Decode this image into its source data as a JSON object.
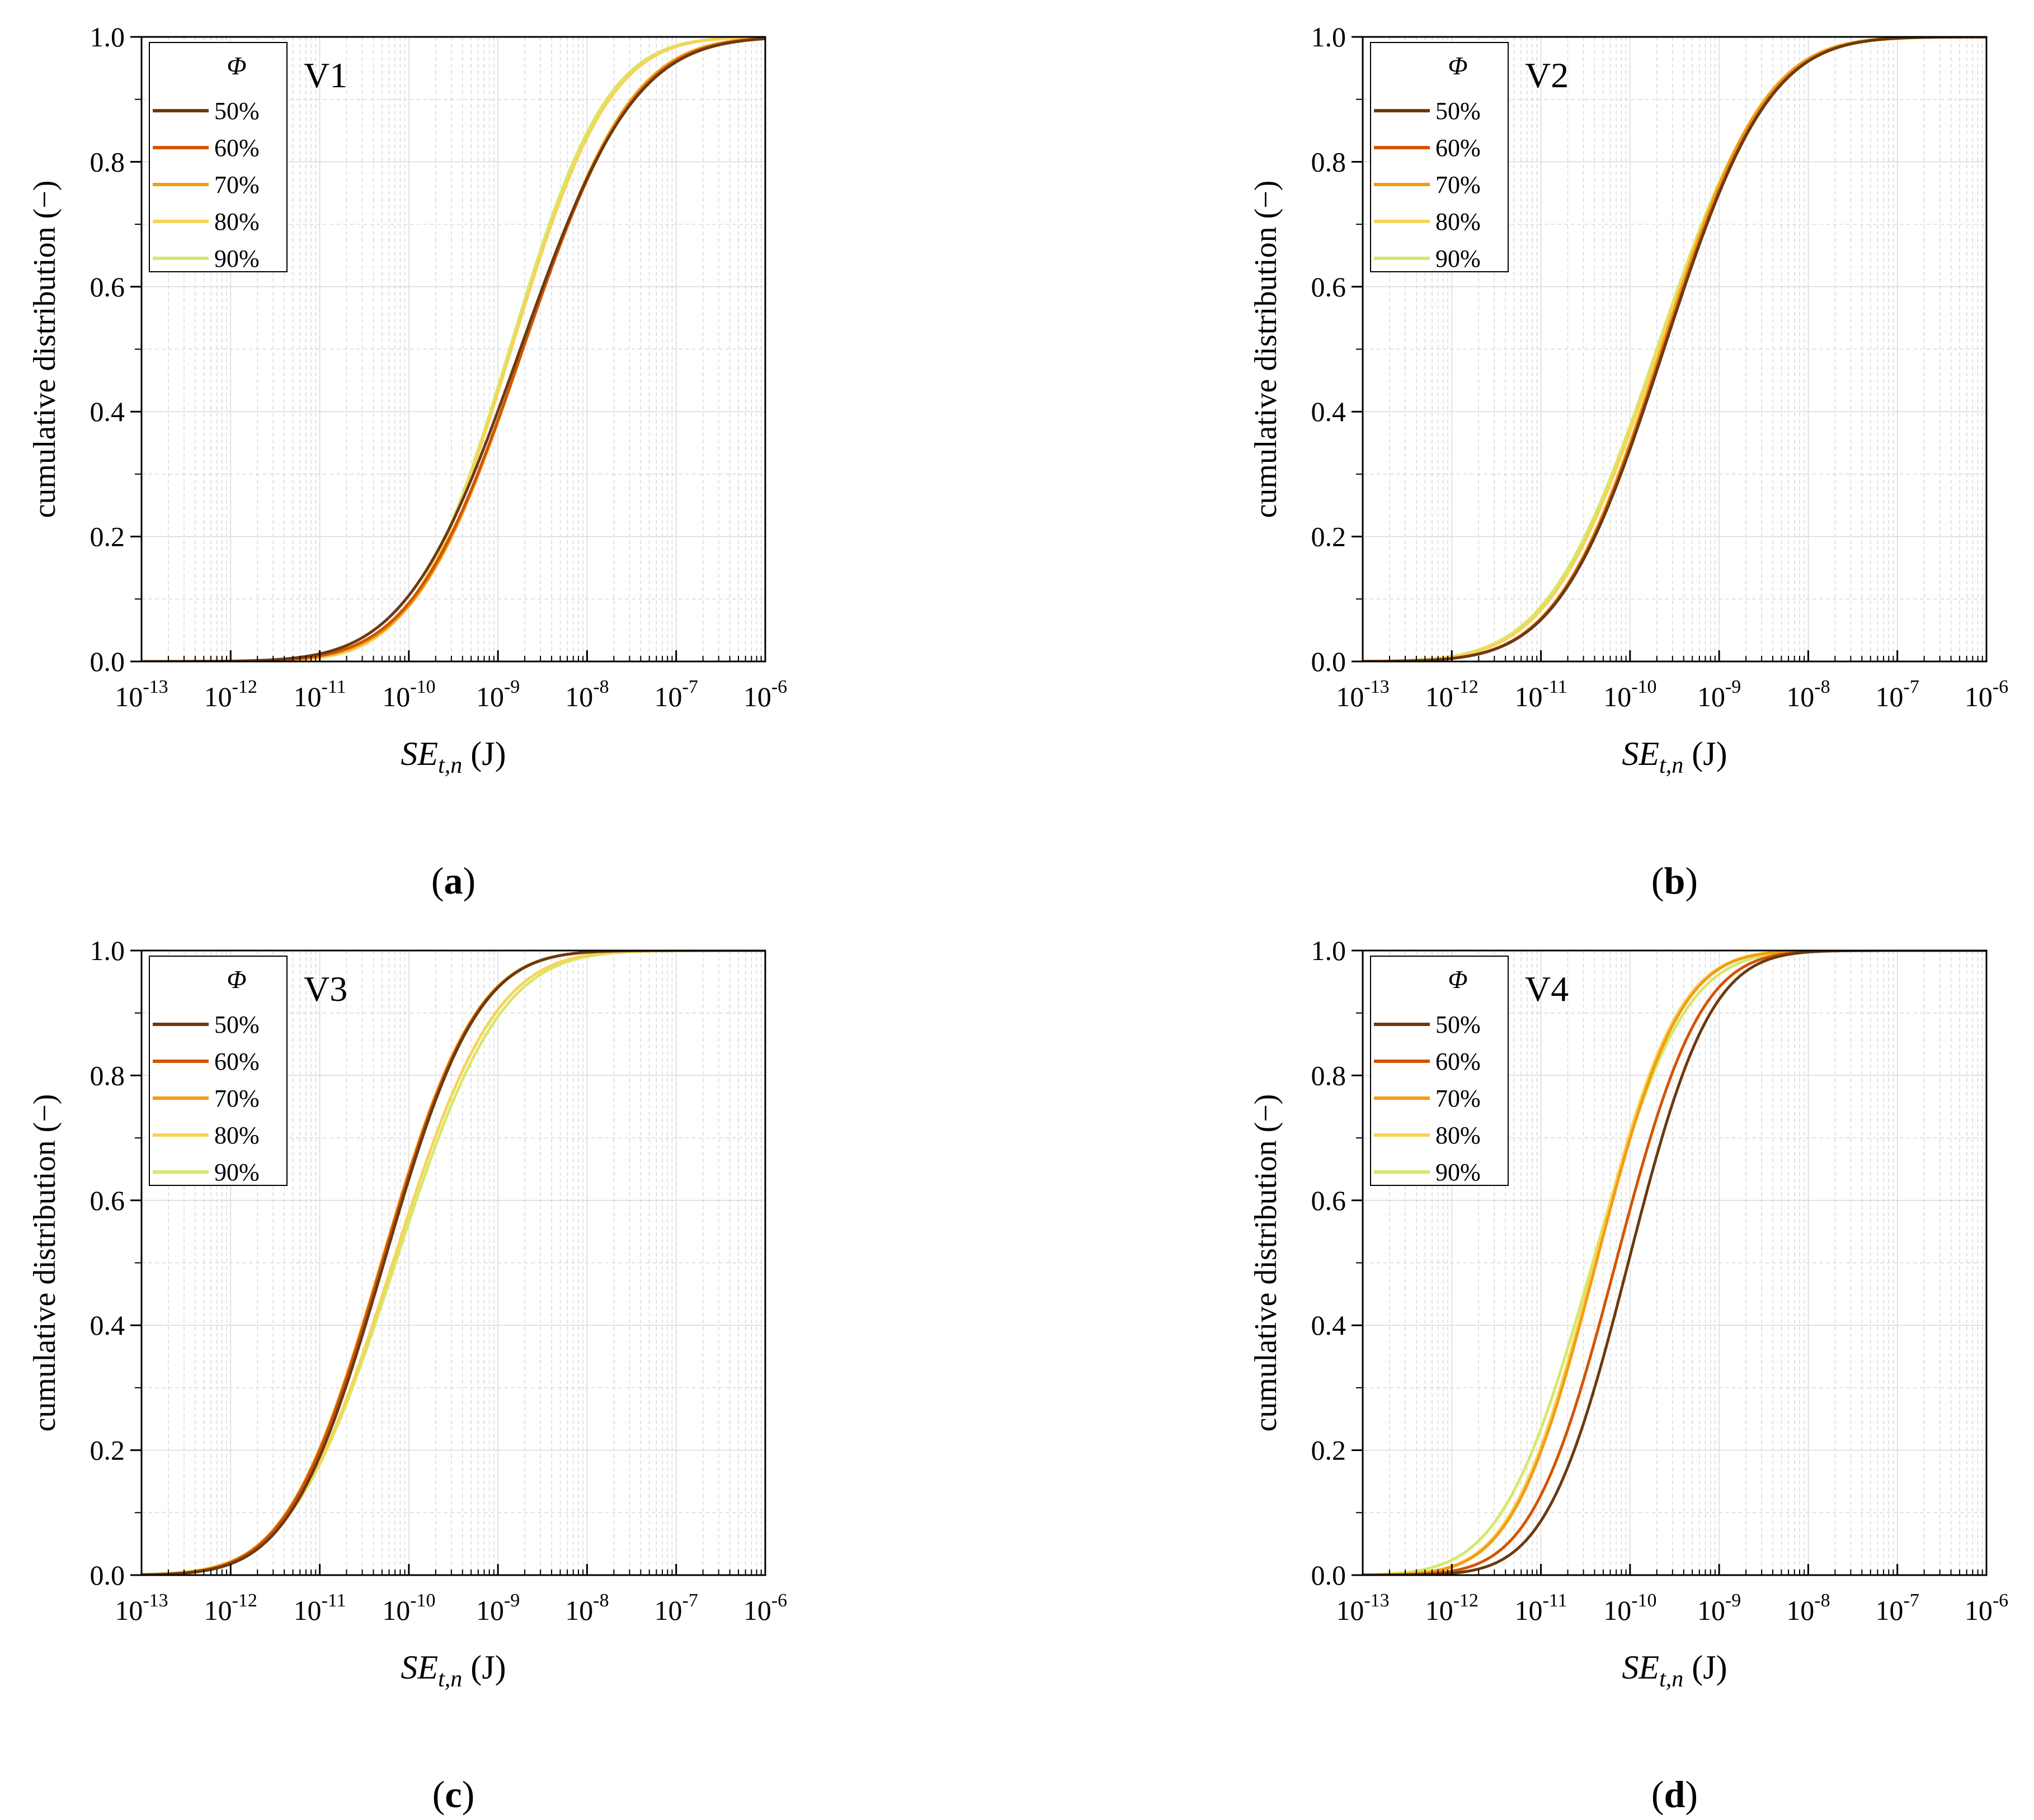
{
  "chart_data": [
    {
      "type": "line",
      "panel_label": "a",
      "panel_label_text": "(a)",
      "title": "V1",
      "xlabel_main": "SE",
      "xlabel_sub": "t,n",
      "xlabel_unit": " (J)",
      "ylabel": "cumulative distribution (−)",
      "xscale": "log",
      "xlim": [
        1e-13,
        1e-06
      ],
      "ylim": [
        0,
        1
      ],
      "xticks": [
        -13,
        -12,
        -11,
        -10,
        -9,
        -8,
        -7,
        -6
      ],
      "xtick_labels": [
        {
          "base": "10",
          "exp": "-13"
        },
        {
          "base": "10",
          "exp": "-12"
        },
        {
          "base": "10",
          "exp": "-11"
        },
        {
          "base": "10",
          "exp": "-10"
        },
        {
          "base": "10",
          "exp": "-9"
        },
        {
          "base": "10",
          "exp": "-8"
        },
        {
          "base": "10",
          "exp": "-7"
        },
        {
          "base": "10",
          "exp": "-6"
        }
      ],
      "yticks": [
        0,
        0.2,
        0.4,
        0.6,
        0.8,
        1.0
      ],
      "ytick_labels": [
        "0.0",
        "0.2",
        "0.4",
        "0.6",
        "0.8",
        "1.0"
      ],
      "grid": true,
      "legend_title": "Φ",
      "legend_position": "top-left",
      "series": [
        {
          "name": "50%",
          "color": "#6b3a10",
          "median_log10": -8.75,
          "sigma_log10": 1.0
        },
        {
          "name": "60%",
          "color": "#d35400",
          "median_log10": -8.72,
          "sigma_log10": 0.97
        },
        {
          "name": "70%",
          "color": "#f39c12",
          "median_log10": -8.72,
          "sigma_log10": 0.95
        },
        {
          "name": "80%",
          "color": "#f7d358",
          "median_log10": -8.85,
          "sigma_log10": 0.86
        },
        {
          "name": "90%",
          "color": "#d6e86a",
          "median_log10": -8.87,
          "sigma_log10": 0.85
        }
      ]
    },
    {
      "type": "line",
      "panel_label": "b",
      "panel_label_text": "(b)",
      "title": "V2",
      "xlabel_main": "SE",
      "xlabel_sub": "t,n",
      "xlabel_unit": " (J)",
      "ylabel": "cumulative distribution (−)",
      "xscale": "log",
      "xlim": [
        1e-13,
        1e-06
      ],
      "ylim": [
        0,
        1
      ],
      "xticks": [
        -13,
        -12,
        -11,
        -10,
        -9,
        -8,
        -7,
        -6
      ],
      "xtick_labels": [
        {
          "base": "10",
          "exp": "-13"
        },
        {
          "base": "10",
          "exp": "-12"
        },
        {
          "base": "10",
          "exp": "-11"
        },
        {
          "base": "10",
          "exp": "-10"
        },
        {
          "base": "10",
          "exp": "-9"
        },
        {
          "base": "10",
          "exp": "-8"
        },
        {
          "base": "10",
          "exp": "-7"
        },
        {
          "base": "10",
          "exp": "-6"
        }
      ],
      "yticks": [
        0,
        0.2,
        0.4,
        0.6,
        0.8,
        1.0
      ],
      "ytick_labels": [
        "0.0",
        "0.2",
        "0.4",
        "0.6",
        "0.8",
        "1.0"
      ],
      "grid": true,
      "legend_title": "Φ",
      "legend_position": "top-left",
      "series": [
        {
          "name": "50%",
          "color": "#6b3a10",
          "median_log10": -9.62,
          "sigma_log10": 0.92
        },
        {
          "name": "60%",
          "color": "#d35400",
          "median_log10": -9.63,
          "sigma_log10": 0.92
        },
        {
          "name": "70%",
          "color": "#f39c12",
          "median_log10": -9.65,
          "sigma_log10": 0.91
        },
        {
          "name": "80%",
          "color": "#f7d358",
          "median_log10": -9.68,
          "sigma_log10": 0.95
        },
        {
          "name": "90%",
          "color": "#d6e86a",
          "median_log10": -9.7,
          "sigma_log10": 0.96
        }
      ]
    },
    {
      "type": "line",
      "panel_label": "c",
      "panel_label_text": "(c)",
      "title": "V3",
      "xlabel_main": "SE",
      "xlabel_sub": "t,n",
      "xlabel_unit": " (J)",
      "ylabel": "cumulative distribution (−)",
      "xscale": "log",
      "xlim": [
        1e-13,
        1e-06
      ],
      "ylim": [
        0,
        1
      ],
      "xticks": [
        -13,
        -12,
        -11,
        -10,
        -9,
        -8,
        -7,
        -6
      ],
      "xtick_labels": [
        {
          "base": "10",
          "exp": "-13"
        },
        {
          "base": "10",
          "exp": "-12"
        },
        {
          "base": "10",
          "exp": "-11"
        },
        {
          "base": "10",
          "exp": "-10"
        },
        {
          "base": "10",
          "exp": "-9"
        },
        {
          "base": "10",
          "exp": "-8"
        },
        {
          "base": "10",
          "exp": "-7"
        },
        {
          "base": "10",
          "exp": "-6"
        }
      ],
      "yticks": [
        0,
        0.2,
        0.4,
        0.6,
        0.8,
        1.0
      ],
      "ytick_labels": [
        "0.0",
        "0.2",
        "0.4",
        "0.6",
        "0.8",
        "1.0"
      ],
      "grid": true,
      "legend_title": "Φ",
      "legend_position": "top-left",
      "series": [
        {
          "name": "50%",
          "color": "#6b3a10",
          "median_log10": -10.28,
          "sigma_log10": 0.82
        },
        {
          "name": "60%",
          "color": "#d35400",
          "median_log10": -10.3,
          "sigma_log10": 0.83
        },
        {
          "name": "70%",
          "color": "#f39c12",
          "median_log10": -10.31,
          "sigma_log10": 0.83
        },
        {
          "name": "80%",
          "color": "#f7d358",
          "median_log10": -10.18,
          "sigma_log10": 0.9
        },
        {
          "name": "90%",
          "color": "#d6e86a",
          "median_log10": -10.15,
          "sigma_log10": 0.92
        }
      ]
    },
    {
      "type": "line",
      "panel_label": "d",
      "panel_label_text": "(d)",
      "title": "V4",
      "xlabel_main": "SE",
      "xlabel_sub": "t,n",
      "xlabel_unit": " (J)",
      "ylabel": "cumulative distribution (−)",
      "xscale": "log",
      "xlim": [
        1e-13,
        1e-06
      ],
      "ylim": [
        0,
        1
      ],
      "xticks": [
        -13,
        -12,
        -11,
        -10,
        -9,
        -8,
        -7,
        -6
      ],
      "xtick_labels": [
        {
          "base": "10",
          "exp": "-13"
        },
        {
          "base": "10",
          "exp": "-12"
        },
        {
          "base": "10",
          "exp": "-11"
        },
        {
          "base": "10",
          "exp": "-10"
        },
        {
          "base": "10",
          "exp": "-9"
        },
        {
          "base": "10",
          "exp": "-8"
        },
        {
          "base": "10",
          "exp": "-7"
        },
        {
          "base": "10",
          "exp": "-6"
        }
      ],
      "yticks": [
        0,
        0.2,
        0.4,
        0.6,
        0.8,
        1.0
      ],
      "ytick_labels": [
        "0.0",
        "0.2",
        "0.4",
        "0.6",
        "0.8",
        "1.0"
      ],
      "grid": true,
      "legend_title": "Φ",
      "legend_position": "top-left",
      "series": [
        {
          "name": "50%",
          "color": "#6b3a10",
          "median_log10": -10.02,
          "sigma_log10": 0.72
        },
        {
          "name": "60%",
          "color": "#d35400",
          "median_log10": -10.16,
          "sigma_log10": 0.74
        },
        {
          "name": "70%",
          "color": "#f39c12",
          "median_log10": -10.38,
          "sigma_log10": 0.73
        },
        {
          "name": "80%",
          "color": "#f7d358",
          "median_log10": -10.4,
          "sigma_log10": 0.73
        },
        {
          "name": "90%",
          "color": "#d6e86a",
          "median_log10": -10.42,
          "sigma_log10": 0.8
        }
      ]
    }
  ]
}
